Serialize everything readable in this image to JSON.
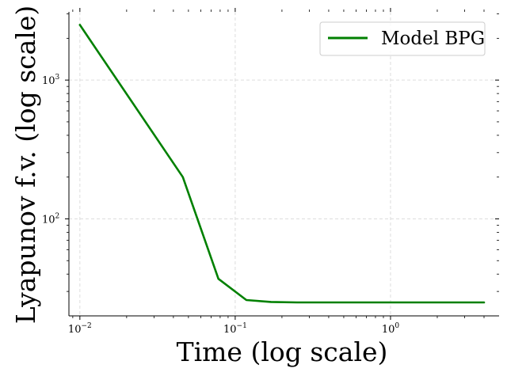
{
  "chart_data": {
    "type": "line",
    "title": "",
    "xlabel": "Time (log scale)",
    "ylabel": "Lyapunov f.v. (log scale)",
    "xscale": "log",
    "yscale": "log",
    "xlim": [
      0.0085,
      5.0
    ],
    "ylim": [
      20,
      3100
    ],
    "grid": true,
    "legend_position": "top-right",
    "x_tick_labels": [
      {
        "base": "10",
        "exp": "−2",
        "value": 0.01
      },
      {
        "base": "10",
        "exp": "−1",
        "value": 0.1
      },
      {
        "base": "10",
        "exp": "0",
        "value": 1
      }
    ],
    "y_tick_labels": [
      {
        "base": "10",
        "exp": "2",
        "value": 100
      },
      {
        "base": "10",
        "exp": "3",
        "value": 1000
      }
    ],
    "series": [
      {
        "name": "Model BPG",
        "color": "#008000",
        "x": [
          0.01,
          0.046,
          0.078,
          0.118,
          0.17,
          0.25,
          0.5,
          1.0,
          2.0,
          4.0
        ],
        "y": [
          2500,
          200,
          37,
          26,
          25.2,
          25,
          25,
          25,
          25,
          25
        ]
      }
    ]
  }
}
